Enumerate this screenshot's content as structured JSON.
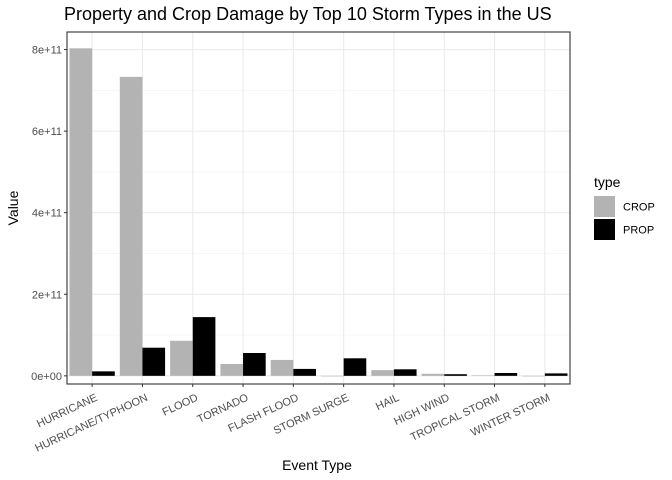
{
  "chart_data": {
    "type": "bar",
    "title": "Property and Crop Damage by Top 10 Storm Types in the US",
    "xlabel": "Event Type",
    "ylabel": "Value",
    "categories": [
      "HURRICANE",
      "HURRICANE/TYPHOON",
      "FLOOD",
      "TORNADO",
      "FLASH FLOOD",
      "STORM SURGE",
      "HAIL",
      "HIGH WIND",
      "TROPICAL STORM",
      "WINTER STORM"
    ],
    "series": [
      {
        "name": "CROP",
        "color": "#b3b3b3",
        "values": [
          803000000000.0,
          733000000000.0,
          86000000000.0,
          29000000000.0,
          39000000000.0,
          0,
          14000000000.0,
          5000000000.0,
          1000000000.0,
          0
        ]
      },
      {
        "name": "PROP",
        "color": "#000000",
        "values": [
          11000000000.0,
          69000000000.0,
          144000000000.0,
          56000000000.0,
          17000000000.0,
          43000000000.0,
          16000000000.0,
          4000000000.0,
          7000000000.0,
          6000000000.0
        ]
      }
    ],
    "ylim": [
      -20000000000.0,
      843000000000.0
    ],
    "yticks": [
      0,
      200000000000.0,
      400000000000.0,
      600000000000.0,
      800000000000.0
    ],
    "ytick_labels": [
      "0e+00",
      "2e+11",
      "4e+11",
      "6e+11",
      "8e+11"
    ],
    "legend": {
      "title": "type",
      "position": "right"
    },
    "grid": true,
    "theme": "bw"
  }
}
